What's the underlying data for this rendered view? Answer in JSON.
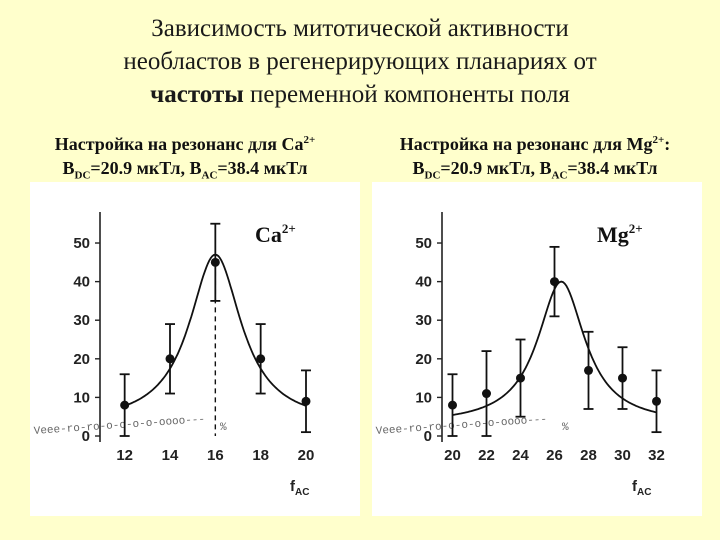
{
  "title": {
    "line1": "Зависимость митотической активности",
    "line2": "необластов в регенерирующих планариях от",
    "line3_bold": "частоты",
    "line3_rest": " переменной компоненты поля"
  },
  "captions": [
    {
      "prefix": "Настройка на резонанс для Ca",
      "ion_sup": "2+",
      "suffix": "",
      "b_dc": "B",
      "dc_sub": "DC",
      "dc_val": "=20.9 мкТл, B",
      "ac_sub": "AC",
      "ac_val": "=38.4 мкТл"
    },
    {
      "prefix": "Настройка на резонанс для Mg",
      "ion_sup": "2+",
      "suffix": ":",
      "b_dc": "B",
      "dc_sub": "DC",
      "dc_val": "=20.9 мкТл, B",
      "ac_sub": "AC",
      "ac_val": "=38.4 мкТл"
    }
  ],
  "chart_data": [
    {
      "type": "scatter",
      "ion_label": "Ca",
      "ion_sup": "2+",
      "xlabel": "f",
      "xlabel_sub": "AC",
      "x_ticks": [
        "12",
        "14",
        "16",
        "18",
        "20"
      ],
      "y_ticks": [
        "0",
        "10",
        "20",
        "30",
        "40",
        "50"
      ],
      "xlim": [
        11,
        21.5
      ],
      "ylim": [
        0,
        57
      ],
      "points": [
        {
          "x": 12,
          "y": 8,
          "err": 8
        },
        {
          "x": 14,
          "y": 20,
          "err": 9
        },
        {
          "x": 16,
          "y": 45,
          "err": 10
        },
        {
          "x": 18,
          "y": 20,
          "err": 9
        },
        {
          "x": 20,
          "y": 9,
          "err": 8
        }
      ],
      "fit": {
        "peak_x": 16,
        "amplitude": 44,
        "width": 1.4,
        "baseline": 3
      },
      "marker_x": 16,
      "noise_text": "Vееe-rо-rо-о-о-о-о-оооо---",
      "noise_end": "%"
    },
    {
      "type": "scatter",
      "ion_label": "Mg",
      "ion_sup": "2+",
      "xlabel": "f",
      "xlabel_sub": "AC",
      "x_ticks": [
        "20",
        "22",
        "24",
        "26",
        "28",
        "30",
        "32"
      ],
      "y_ticks": [
        "0",
        "10",
        "20",
        "30",
        "40",
        "50"
      ],
      "xlim": [
        19.5,
        33.5
      ],
      "ylim": [
        0,
        57
      ],
      "points": [
        {
          "x": 20,
          "y": 8,
          "err": 8
        },
        {
          "x": 22,
          "y": 11,
          "err": 11
        },
        {
          "x": 24,
          "y": 15,
          "err": 10
        },
        {
          "x": 26,
          "y": 40,
          "err": 9
        },
        {
          "x": 28,
          "y": 17,
          "err": 10
        },
        {
          "x": 30,
          "y": 15,
          "err": 8
        },
        {
          "x": 32,
          "y": 9,
          "err": 8
        }
      ],
      "fit": {
        "peak_x": 26.4,
        "amplitude": 37,
        "width": 1.7,
        "baseline": 3
      },
      "marker_x": null,
      "noise_text": "Vееe-rо-rо-о-о-о-о-оооо---",
      "noise_end": "%"
    }
  ]
}
